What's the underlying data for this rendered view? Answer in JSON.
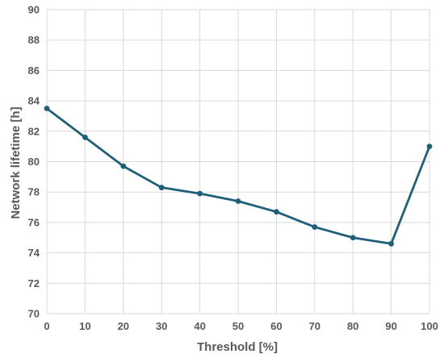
{
  "chart_data": {
    "type": "line",
    "title": "",
    "xlabel": "Threshold [%]",
    "ylabel": "Network lifetime [h]",
    "x": [
      0,
      10,
      20,
      30,
      40,
      50,
      60,
      70,
      80,
      90,
      100
    ],
    "x_ticks": [
      "0",
      "10",
      "20",
      "30",
      "40",
      "50",
      "60",
      "70",
      "80",
      "90",
      "100"
    ],
    "y_ticks": [
      "70",
      "72",
      "74",
      "76",
      "78",
      "80",
      "82",
      "84",
      "86",
      "88",
      "90"
    ],
    "xlim": [
      0,
      100
    ],
    "ylim": [
      70,
      90
    ],
    "grid": true,
    "legend": "none",
    "series": [
      {
        "values": [
          83.5,
          81.6,
          79.7,
          78.3,
          77.9,
          77.4,
          76.7,
          75.7,
          75.0,
          74.6,
          81.0
        ],
        "color": "#1f5f7a",
        "marker": "circle"
      }
    ]
  }
}
